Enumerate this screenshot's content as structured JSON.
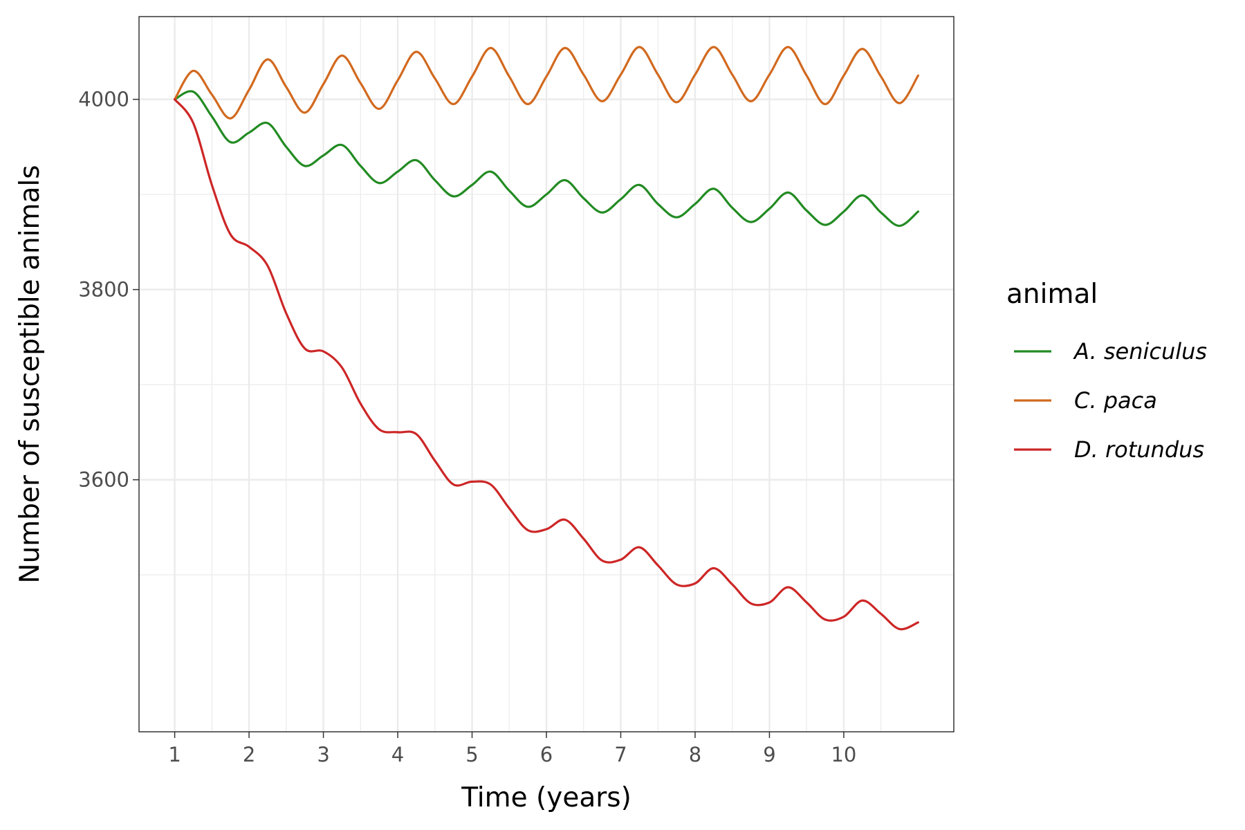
{
  "chart_data": {
    "type": "line",
    "title": "",
    "xlabel": "Time (years)",
    "ylabel": "Number of susceptible animals",
    "xlim": [
      0.52,
      11.48
    ],
    "ylim": [
      3335,
      4087
    ],
    "xticks": [
      1,
      2,
      3,
      4,
      5,
      6,
      7,
      8,
      9,
      10
    ],
    "yticks": [
      3600,
      3800,
      4000
    ],
    "grid": true,
    "legend": {
      "title": "animal",
      "position": "right"
    },
    "x": [
      1.0,
      1.25,
      1.5,
      1.75,
      2.0,
      2.25,
      2.5,
      2.75,
      3.0,
      3.25,
      3.5,
      3.75,
      4.0,
      4.25,
      4.5,
      4.75,
      5.0,
      5.25,
      5.5,
      5.75,
      6.0,
      6.25,
      6.5,
      6.75,
      7.0,
      7.25,
      7.5,
      7.75,
      8.0,
      8.25,
      8.5,
      8.75,
      9.0,
      9.25,
      9.5,
      9.75,
      10.0,
      10.25,
      10.5,
      10.75,
      11.0
    ],
    "series": [
      {
        "name": "A. seniculus",
        "color": "#228B22",
        "values": [
          4000,
          4008,
          3982,
          3955,
          3965,
          3975,
          3950,
          3930,
          3941,
          3952,
          3930,
          3912,
          3924,
          3936,
          3915,
          3898,
          3910,
          3924,
          3904,
          3887,
          3900,
          3915,
          3896,
          3881,
          3895,
          3910,
          3890,
          3876,
          3890,
          3906,
          3886,
          3871,
          3885,
          3902,
          3883,
          3868,
          3882,
          3899,
          3881,
          3867,
          3882
        ]
      },
      {
        "name": "C. paca",
        "color": "#D2691E",
        "values": [
          4000,
          4030,
          4005,
          3980,
          4010,
          4042,
          4013,
          3986,
          4016,
          4046,
          4017,
          3990,
          4020,
          4050,
          4022,
          3995,
          4024,
          4054,
          4024,
          3995,
          4024,
          4054,
          4026,
          3998,
          4026,
          4055,
          4026,
          3997,
          4026,
          4055,
          4026,
          3998,
          4026,
          4055,
          4025,
          3995,
          4025,
          4053,
          4024,
          3996,
          4025
        ]
      },
      {
        "name": "D. rotundus",
        "color": "#CD2626",
        "values": [
          4000,
          3975,
          3910,
          3858,
          3845,
          3825,
          3775,
          3738,
          3735,
          3718,
          3680,
          3653,
          3650,
          3648,
          3620,
          3595,
          3598,
          3595,
          3570,
          3547,
          3548,
          3558,
          3538,
          3515,
          3516,
          3529,
          3510,
          3490,
          3491,
          3507,
          3490,
          3470,
          3471,
          3487,
          3471,
          3453,
          3456,
          3473,
          3459,
          3443,
          3450
        ]
      }
    ]
  }
}
